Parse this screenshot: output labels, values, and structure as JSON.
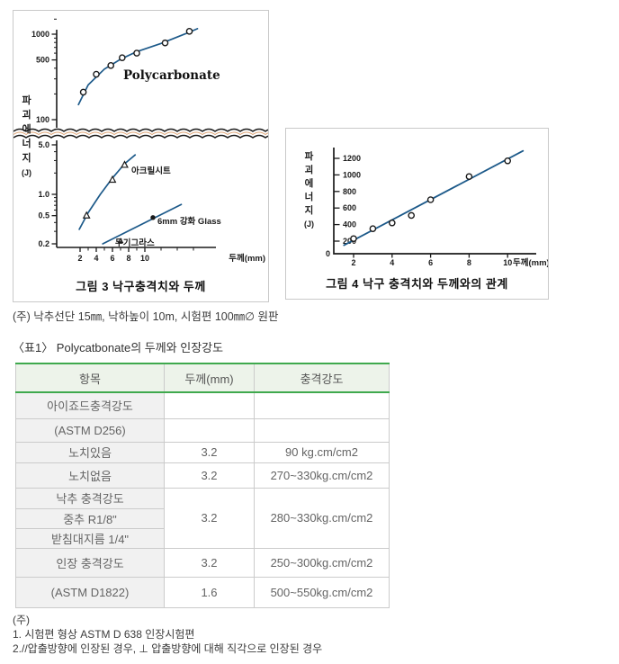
{
  "colors": {
    "accent_green": "#3fa94d",
    "header_bg": "#edf3ea",
    "row_bg": "#f1f1f1",
    "cell_border": "#cbcbcb",
    "curve": "#1d5a8a",
    "ink": "#1a1a1a"
  },
  "note_under_figures": "(주) 낙추선단 15㎜, 낙하높이 10m, 시험편 100㎜∅ 원판",
  "table_title": "〈표1〉 Polycatbonate의 두께와 인장강도",
  "chart_data": [
    {
      "id": "fig3",
      "type": "scatter",
      "title": "그림 3 낙구충격치와 두께",
      "xlabel": "두께(mm)",
      "ylabel": "파괴에너지(J)",
      "x_ticks": [
        2,
        4,
        6,
        8,
        10
      ],
      "y_axis": {
        "scale": "log-with-break",
        "upper_ticks": [
          [
            1000,
            "1000"
          ],
          [
            500,
            "500"
          ],
          [
            100,
            "100"
          ]
        ],
        "lower_ticks": [
          [
            5,
            "5.0"
          ],
          [
            1,
            "1.0"
          ],
          [
            0.5,
            "0.5"
          ],
          [
            0.2,
            "0.2"
          ]
        ],
        "break_between": [
          "5.0",
          "100"
        ]
      },
      "series": [
        {
          "name": "Polycarbonate",
          "marker": "circle-open",
          "points": [
            [
              2.4,
              210
            ],
            [
              4,
              340
            ],
            [
              5.8,
              430
            ],
            [
              7.2,
              530
            ],
            [
              9,
              600
            ],
            [
              12.5,
              790
            ],
            [
              15.5,
              1080
            ]
          ],
          "line": [
            [
              1.8,
              150
            ],
            [
              3,
              255
            ],
            [
              5,
              390
            ],
            [
              7,
              510
            ],
            [
              9,
              625
            ],
            [
              12,
              780
            ],
            [
              15,
              1010
            ],
            [
              16.5,
              1160
            ]
          ]
        },
        {
          "name": "아크릴시트",
          "marker": "triangle-open",
          "points": [
            [
              2.8,
              0.5
            ],
            [
              6,
              1.6
            ],
            [
              7.5,
              2.6
            ]
          ],
          "line": [
            [
              1.9,
              0.32
            ],
            [
              3,
              0.55
            ],
            [
              4.5,
              1.0
            ],
            [
              6,
              1.7
            ],
            [
              7.5,
              2.7
            ],
            [
              8.8,
              3.6
            ]
          ]
        },
        {
          "name": "무기그라스",
          "marker": "triangle-small",
          "points": [
            [
              7,
              0.22
            ]
          ],
          "line": [
            [
              4.8,
              0.2
            ],
            [
              14.5,
              0.72
            ]
          ]
        },
        {
          "name": "6mm 강화 Glass",
          "marker": "circle-filled",
          "points": [
            [
              11,
              0.47
            ]
          ],
          "line": []
        }
      ]
    },
    {
      "id": "fig4",
      "type": "scatter",
      "title": "그림 4 낙구 충격치와 두께와의 관계",
      "xlabel": "두께(mm)",
      "ylabel": "파괴에너지(J)",
      "x_ticks": [
        2,
        4,
        6,
        8,
        10
      ],
      "y_ticks": [
        0,
        200,
        400,
        600,
        800,
        1000,
        1200
      ],
      "series": [
        {
          "name": "낙구 충격치",
          "marker": "circle-open",
          "points": [
            [
              2,
              230
            ],
            [
              3,
              350
            ],
            [
              4,
              420
            ],
            [
              5,
              510
            ],
            [
              6,
              700
            ],
            [
              8,
              980
            ],
            [
              10,
              1170
            ]
          ],
          "line": [
            [
              1.5,
              150
            ],
            [
              10.8,
              1290
            ]
          ]
        }
      ]
    }
  ],
  "table": {
    "headers": [
      "항목",
      "두께(mm)",
      "충격강도"
    ],
    "rows": [
      {
        "item": "아이죠드충격강도",
        "thickness": "",
        "strength": ""
      },
      {
        "item": "(ASTM D256)",
        "thickness": "",
        "strength": ""
      },
      {
        "item": "노치있음",
        "thickness": "3.2",
        "strength": "90 kg.cm/cm2"
      },
      {
        "item": "노치없음",
        "thickness": "3.2",
        "strength": "270~330kg.cm/cm2"
      },
      {
        "item": "낙추 충격강도",
        "thickness": "3.2",
        "strength": "280~330kg.cm/cm2"
      },
      {
        "item": "중추 R1/8\"",
        "thickness": "",
        "strength": ""
      },
      {
        "item": "받침대지름 1/4\"",
        "thickness": "",
        "strength": ""
      },
      {
        "item": "인장 충격강도",
        "thickness": "3.2",
        "strength": "250~300kg.cm/cm2"
      },
      {
        "item": "(ASTM D1822)",
        "thickness": "1.6",
        "strength": "500~550kg.cm/cm2"
      }
    ]
  },
  "footnotes": [
    "(주)",
    "1. 시험편 형상 ASTM D 638 인장시험편",
    "2.//압출방향에 인장된 경우, ⊥ 압출방향에 대해 직각으로 인장된 경우"
  ]
}
